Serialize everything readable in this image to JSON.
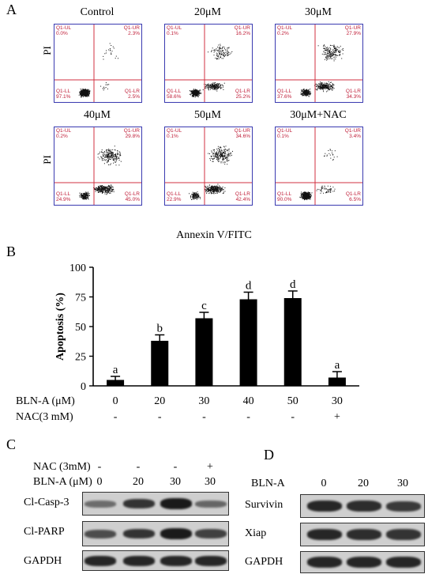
{
  "panelA": {
    "letter": "A",
    "y_label": "PI",
    "x_label": "Annexin V/FITC",
    "plots": [
      {
        "title": "Control",
        "ul_label": "Q1-UL",
        "ul": "0.0%",
        "ur_label": "Q1-UR",
        "ur": "2.3%",
        "ll_label": "Q1-LL",
        "ll": "97.1%",
        "lr_label": "Q1-LR",
        "lr": "2.5%"
      },
      {
        "title": "20μM",
        "ul_label": "Q1-UL",
        "ul": "0.1%",
        "ur_label": "Q1-UR",
        "ur": "16.2%",
        "ll_label": "Q1-LL",
        "ll": "58.6%",
        "lr_label": "Q1-LR",
        "lr": "25.2%"
      },
      {
        "title": "30μM",
        "ul_label": "Q1-UL",
        "ul": "0.2%",
        "ur_label": "Q1-UR",
        "ur": "27.9%",
        "ll_label": "Q1-LL",
        "ll": "37.6%",
        "lr_label": "Q1-LR",
        "lr": "34.3%"
      },
      {
        "title": "40μM",
        "ul_label": "Q1-UL",
        "ul": "0.2%",
        "ur_label": "Q1-UR",
        "ur": "29.8%",
        "ll_label": "Q1-LL",
        "ll": "24.9%",
        "lr_label": "Q1-LR",
        "lr": "45.0%"
      },
      {
        "title": "50μM",
        "ul_label": "Q1-UL",
        "ul": "0.1%",
        "ur_label": "Q1-UR",
        "ur": "34.6%",
        "ll_label": "Q1-LL",
        "ll": "22.9%",
        "lr_label": "Q1-LR",
        "lr": "42.4%"
      },
      {
        "title": "30μM+NAC",
        "ul_label": "Q1-UL",
        "ul": "0.1%",
        "ur_label": "Q1-UR",
        "ur": "3.4%",
        "ll_label": "Q1-LL",
        "ll": "90.0%",
        "lr_label": "Q1-LR",
        "lr": "6.5%"
      }
    ]
  },
  "chart_data": {
    "type": "bar",
    "letter": "B",
    "ylabel": "Apoptosis (%)",
    "ylim": [
      0,
      100
    ],
    "yticks": [
      "0",
      "25",
      "50",
      "75",
      "100"
    ],
    "categories": [
      "0",
      "20",
      "30",
      "40",
      "50",
      "30"
    ],
    "values": [
      5,
      38,
      57,
      73,
      74,
      7
    ],
    "errors": [
      3,
      5,
      5,
      6,
      6,
      5
    ],
    "significance": [
      "a",
      "b",
      "c",
      "d",
      "d",
      "a"
    ],
    "row1_label": "BLN-A (μM)",
    "row2_label": "NAC(3 mM)",
    "nac": [
      "-",
      "-",
      "-",
      "-",
      "-",
      "+"
    ],
    "bar_color": "#000000"
  },
  "panelC": {
    "letter": "C",
    "nac_label": "NAC (3mM)",
    "blna_label": "BLN-A (μM)",
    "nac": [
      "-",
      "-",
      "-",
      "+"
    ],
    "blna": [
      "0",
      "20",
      "30",
      "30"
    ],
    "rows": [
      "Cl-Casp-3",
      "Cl-PARP",
      "GAPDH"
    ]
  },
  "panelD": {
    "letter": "D",
    "blna_label": "BLN-A",
    "blna": [
      "0",
      "20",
      "30"
    ],
    "rows": [
      "Survivin",
      "Xiap",
      "GAPDH"
    ]
  }
}
